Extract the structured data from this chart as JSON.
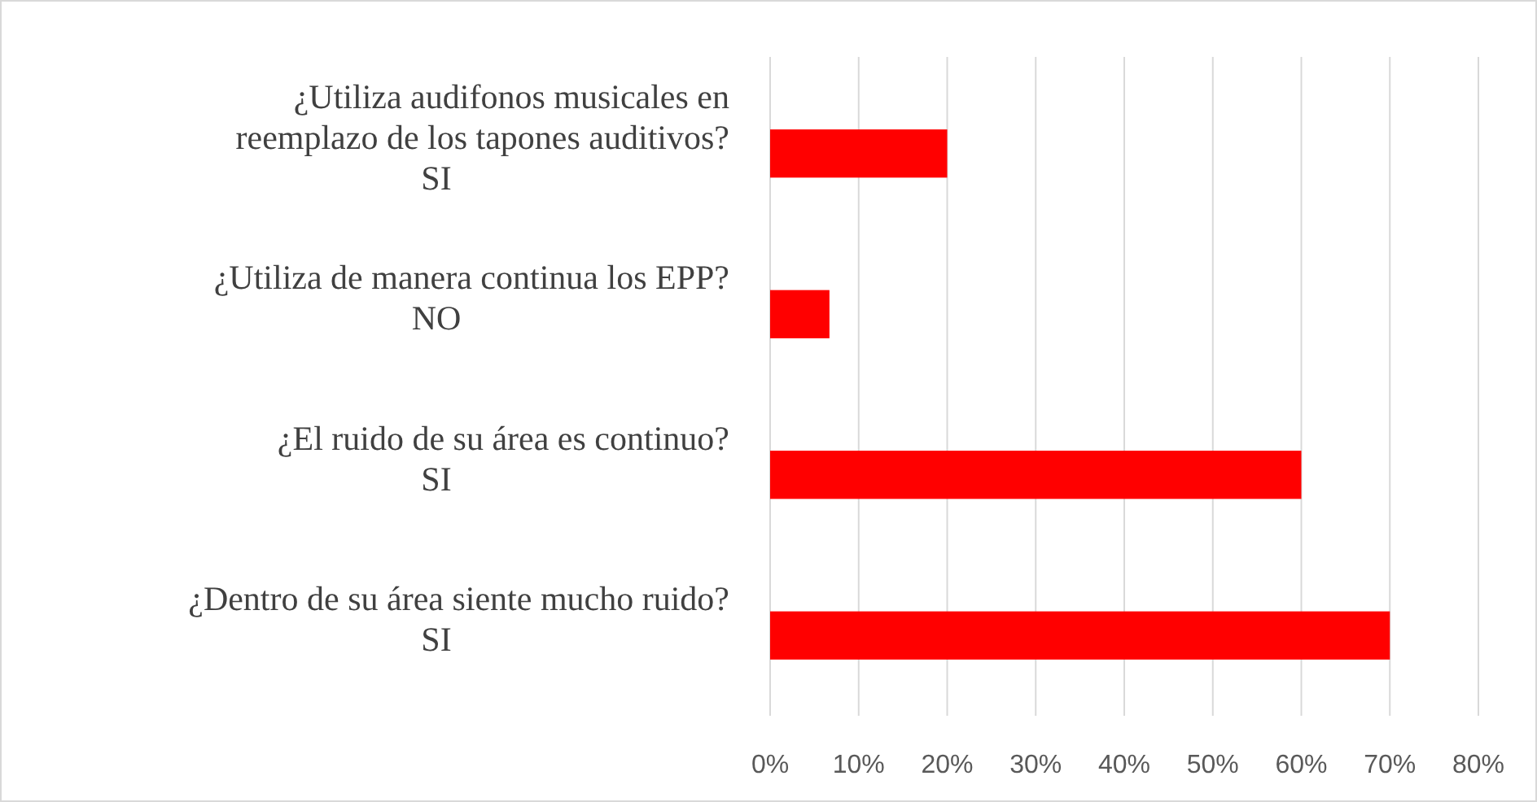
{
  "chart_data": {
    "type": "bar",
    "orientation": "horizontal",
    "categories": [
      "¿Utiliza audifonos musicales en\nreemplazo de los tapones auditivos?\nSI",
      "¿Utiliza de manera continua los EPP?\nNO",
      "¿El ruido de su área es continuo?\nSI",
      "¿Dentro de su área siente mucho ruido?\nSI"
    ],
    "values": [
      20,
      6.7,
      60,
      70
    ],
    "color": "#ff0000",
    "xlim": [
      0,
      80
    ],
    "xticks": [
      {
        "value": 0,
        "label": "0%"
      },
      {
        "value": 10,
        "label": "10%"
      },
      {
        "value": 20,
        "label": "20%"
      },
      {
        "value": 30,
        "label": "30%"
      },
      {
        "value": 40,
        "label": "40%"
      },
      {
        "value": 50,
        "label": "50%"
      },
      {
        "value": 60,
        "label": "60%"
      },
      {
        "value": 70,
        "label": "70%"
      },
      {
        "value": 80,
        "label": "80%"
      }
    ],
    "grid": "x"
  }
}
